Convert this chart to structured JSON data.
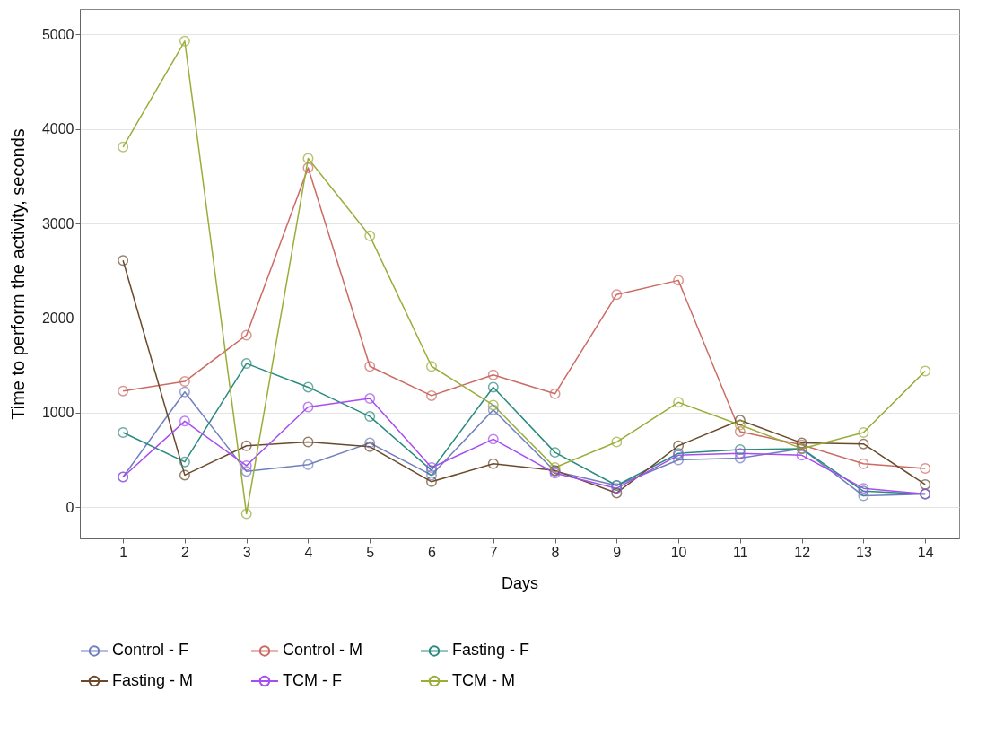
{
  "chart_data": {
    "type": "line",
    "xlabel": "Days",
    "ylabel": "Time to perform the activity, seconds",
    "x": [
      1,
      2,
      3,
      4,
      5,
      6,
      7,
      8,
      9,
      10,
      11,
      12,
      13,
      14
    ],
    "xlim": [
      0.3,
      14.55
    ],
    "xticks": [
      1,
      2,
      3,
      4,
      5,
      6,
      7,
      8,
      9,
      10,
      11,
      12,
      13,
      14
    ],
    "ylim": [
      -330,
      5270
    ],
    "yticks": [
      0,
      1000,
      2000,
      3000,
      4000,
      5000
    ],
    "grid": "y",
    "legend": "bottom",
    "marker": "circle",
    "line_style": "solid",
    "series": [
      {
        "name": "Control - F",
        "color": "#6f7fbd",
        "values": [
          320,
          1220,
          380,
          450,
          680,
          340,
          1030,
          380,
          230,
          500,
          520,
          620,
          120,
          140
        ]
      },
      {
        "name": "Control - M",
        "color": "#cc6b63",
        "values": [
          1230,
          1330,
          1820,
          3590,
          1490,
          1180,
          1400,
          1200,
          2250,
          2400,
          800,
          660,
          460,
          410
        ]
      },
      {
        "name": "Fasting - F",
        "color": "#2a8a7e",
        "values": [
          790,
          480,
          1520,
          1270,
          960,
          390,
          1270,
          580,
          230,
          570,
          610,
          620,
          170,
          140
        ]
      },
      {
        "name": "Fasting - M",
        "color": "#6b4a2c",
        "values": [
          2610,
          340,
          650,
          690,
          640,
          270,
          460,
          390,
          150,
          650,
          920,
          680,
          670,
          240
        ]
      },
      {
        "name": "TCM - F",
        "color": "#a64df0",
        "values": [
          320,
          910,
          440,
          1060,
          1150,
          420,
          720,
          360,
          200,
          550,
          570,
          550,
          200,
          140
        ]
      },
      {
        "name": "TCM - M",
        "color": "#9aad38",
        "values": [
          3810,
          4930,
          -70,
          3690,
          2870,
          1490,
          1080,
          420,
          690,
          1110,
          870,
          620,
          790,
          1440
        ]
      }
    ]
  }
}
